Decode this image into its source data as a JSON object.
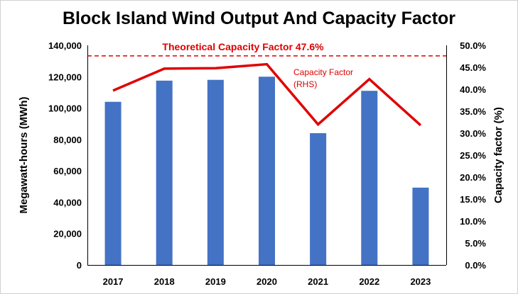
{
  "chart_data": {
    "type": "bar",
    "title": "Block Island Wind Output And Capacity Factor",
    "categories": [
      "2017",
      "2018",
      "2019",
      "2020",
      "2021",
      "2022",
      "2023"
    ],
    "series": [
      {
        "type": "bar",
        "axis": "left",
        "color": "#4472c4",
        "values": [
          104000,
          117500,
          118000,
          120000,
          84000,
          111000,
          49300
        ]
      },
      {
        "name": "Capacity Factor (RHS)",
        "name_lines": [
          "Capacity Factor",
          "(RHS)"
        ],
        "type": "line",
        "axis": "right",
        "color": "#e00000",
        "values": [
          0.397,
          0.447,
          0.448,
          0.457,
          0.32,
          0.423,
          0.318
        ]
      }
    ],
    "reference_line": {
      "label": "Theoretical Capacity Factor 47.6%",
      "value": 0.476,
      "axis": "right",
      "style": "dashed",
      "color": "#e00000"
    },
    "y_left": {
      "label": "Megawatt-hours (MWh)",
      "ylim": [
        0,
        140000
      ],
      "ticks": [
        "0",
        "20,000",
        "40,000",
        "60,000",
        "80,000",
        "100,000",
        "120,000",
        "140,000"
      ]
    },
    "y_right": {
      "label": "Capacity factor (%)",
      "ylim": [
        0,
        0.5
      ],
      "ticks": [
        "0.0%",
        "5.0%",
        "10.0%",
        "15.0%",
        "20.0%",
        "25.0%",
        "30.0%",
        "35.0%",
        "40.0%",
        "45.0%",
        "50.0%"
      ]
    },
    "grid": false,
    "legend": "inline-label"
  }
}
